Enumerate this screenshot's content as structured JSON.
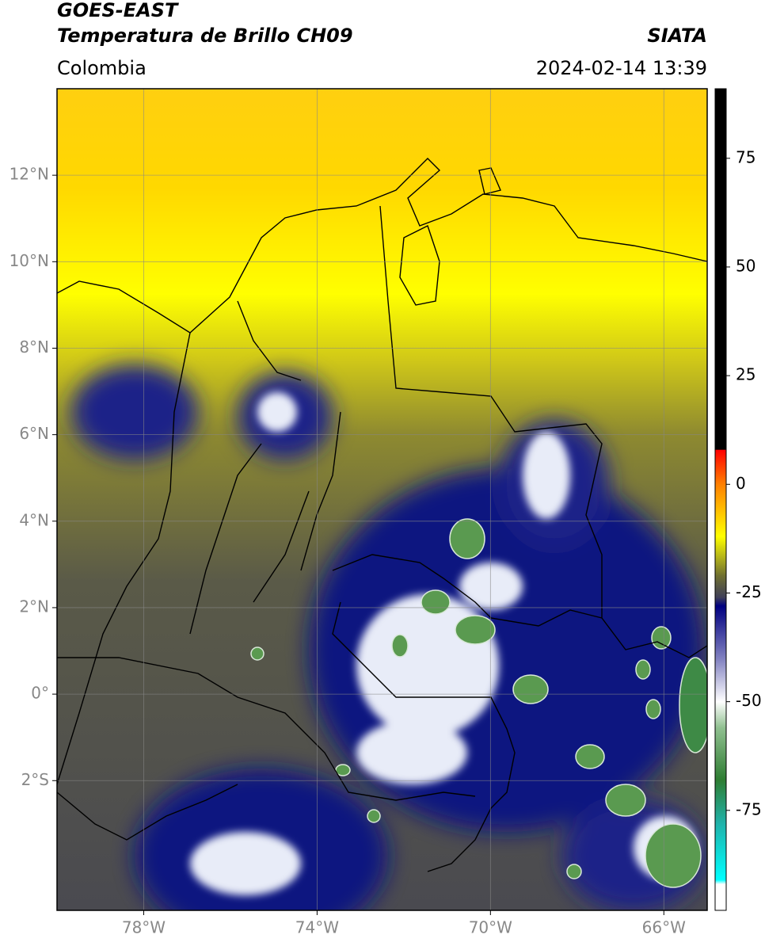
{
  "header": {
    "title": "GOES-EAST",
    "subtitle": "Temperatura de Brillo CH09",
    "source": "SIATA",
    "region": "Colombia",
    "datetime": "2024-02-14 13:39"
  },
  "map": {
    "xlim": [
      -80,
      -65
    ],
    "ylim": [
      -5,
      14
    ],
    "xticks": [
      {
        "value": -78,
        "label": "78°W"
      },
      {
        "value": -74,
        "label": "74°W"
      },
      {
        "value": -70,
        "label": "70°W"
      },
      {
        "value": -66,
        "label": "66°W"
      }
    ],
    "yticks": [
      {
        "value": 12,
        "label": "12°N"
      },
      {
        "value": 10,
        "label": "10°N"
      },
      {
        "value": 8,
        "label": "8°N"
      },
      {
        "value": 6,
        "label": "6°N"
      },
      {
        "value": 4,
        "label": "4°N"
      },
      {
        "value": 2,
        "label": "2°N"
      },
      {
        "value": 0,
        "label": "0°"
      },
      {
        "value": -2,
        "label": "2°S"
      }
    ],
    "grid": true
  },
  "colorbar": {
    "range": [
      -98,
      91
    ],
    "ticks": [
      75,
      50,
      25,
      0,
      -25,
      -50,
      -75
    ],
    "stops": [
      {
        "value": 91,
        "color": "#000000"
      },
      {
        "value": 8,
        "color": "#000000"
      },
      {
        "value": 7.9,
        "color": "#ff0000"
      },
      {
        "value": 0,
        "color": "#ff8000"
      },
      {
        "value": -12,
        "color": "#ffff00"
      },
      {
        "value": -21,
        "color": "#707030"
      },
      {
        "value": -26,
        "color": "#404058"
      },
      {
        "value": -28,
        "color": "#000080"
      },
      {
        "value": -40,
        "color": "#8080c0"
      },
      {
        "value": -50,
        "color": "#ffffff"
      },
      {
        "value": -56,
        "color": "#90c090"
      },
      {
        "value": -68,
        "color": "#2e7d32"
      },
      {
        "value": -78,
        "color": "#20b2aa"
      },
      {
        "value": -91,
        "color": "#00ffff"
      },
      {
        "value": -92,
        "color": "#ffffff"
      },
      {
        "value": -98,
        "color": "#ffffff"
      }
    ]
  }
}
